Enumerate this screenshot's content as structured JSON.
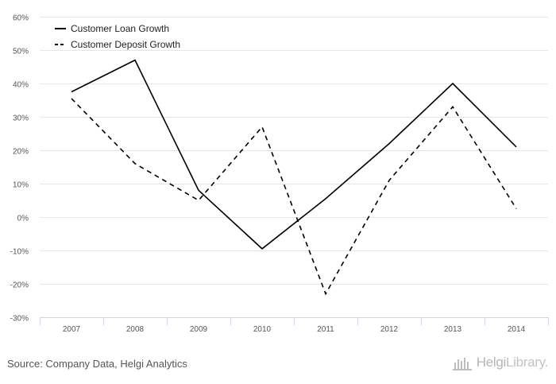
{
  "chart_data": {
    "type": "line",
    "categories": [
      "2007",
      "2008",
      "2009",
      "2010",
      "2011",
      "2012",
      "2013",
      "2014"
    ],
    "series": [
      {
        "name": "Customer Loan Growth",
        "values": [
          37.5,
          47,
          8,
          -9.5,
          5.5,
          22,
          40,
          21
        ],
        "style": "solid"
      },
      {
        "name": "Customer Deposit Growth",
        "values": [
          35.5,
          16,
          5,
          27,
          -23,
          11,
          33,
          2.5
        ],
        "style": "dashed"
      }
    ],
    "ylim": [
      -30,
      60
    ],
    "yticks": [
      -30,
      -20,
      -10,
      0,
      10,
      20,
      30,
      40,
      50,
      60
    ],
    "ytick_suffix": "%",
    "grid": true,
    "legend_position": "top-left",
    "colors": {
      "series": "#000000",
      "grid": "#e6e6e6",
      "axis": "#ccd6eb",
      "text": "#555555"
    }
  },
  "footer": {
    "source": "Source: Company Data, Helgi Analytics",
    "brand_bold": "Helgi",
    "brand_light": "Library."
  }
}
